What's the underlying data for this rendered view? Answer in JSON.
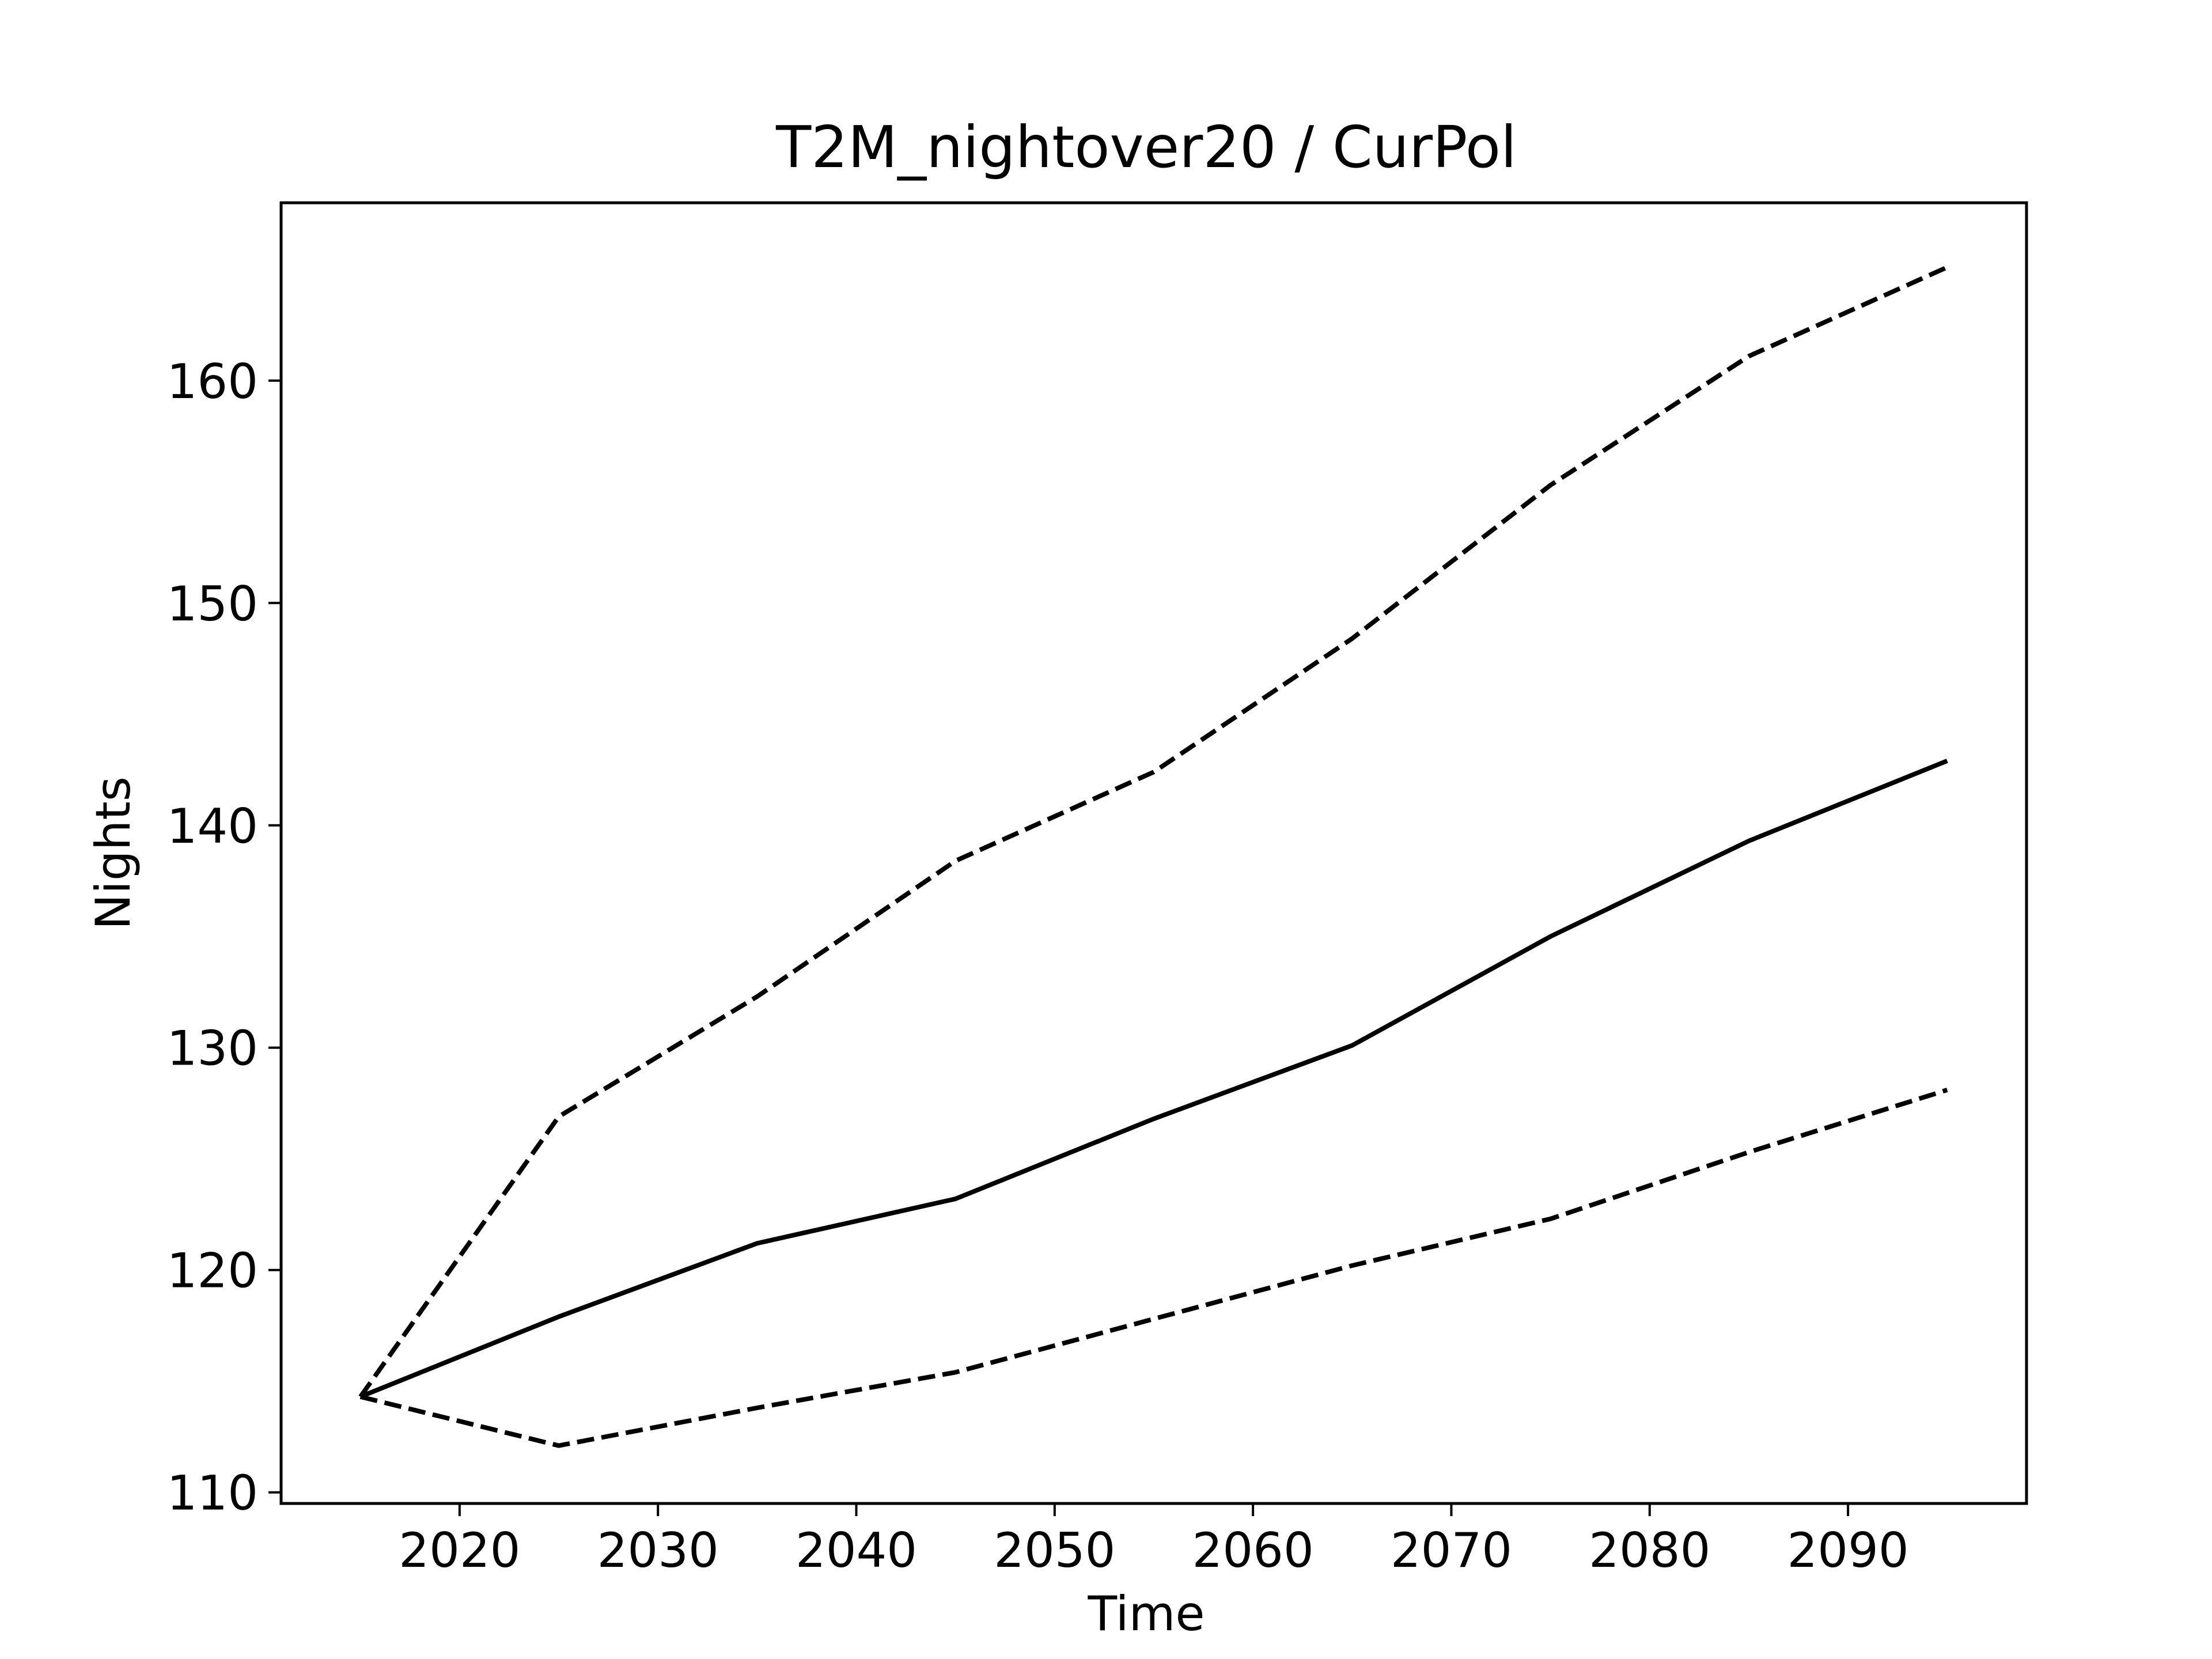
{
  "chart_data": {
    "type": "line",
    "title": "T2M_nightover20 / CurPol",
    "xlabel": "Time",
    "ylabel": "Nights",
    "xlim": [
      2011,
      2099
    ],
    "ylim": [
      109.5,
      168
    ],
    "xticks": [
      2020,
      2030,
      2040,
      2050,
      2060,
      2070,
      2080,
      2090
    ],
    "yticks": [
      110,
      120,
      130,
      140,
      150,
      160
    ],
    "grid": false,
    "x": [
      2015,
      2025,
      2035,
      2045,
      2055,
      2065,
      2075,
      2085,
      2095
    ],
    "series": [
      {
        "style": "solid",
        "color": "#000000",
        "values": [
          114.3,
          117.9,
          121.2,
          123.2,
          126.8,
          130.1,
          135.0,
          139.3,
          142.9
        ]
      },
      {
        "style": "dashed",
        "color": "#000000",
        "values": [
          114.3,
          126.9,
          132.3,
          138.4,
          142.4,
          148.4,
          155.3,
          161.1,
          165.1
        ]
      },
      {
        "style": "dashed",
        "color": "#000000",
        "values": [
          114.3,
          112.1,
          113.8,
          115.4,
          117.8,
          120.2,
          122.3,
          125.3,
          128.1
        ]
      }
    ]
  }
}
